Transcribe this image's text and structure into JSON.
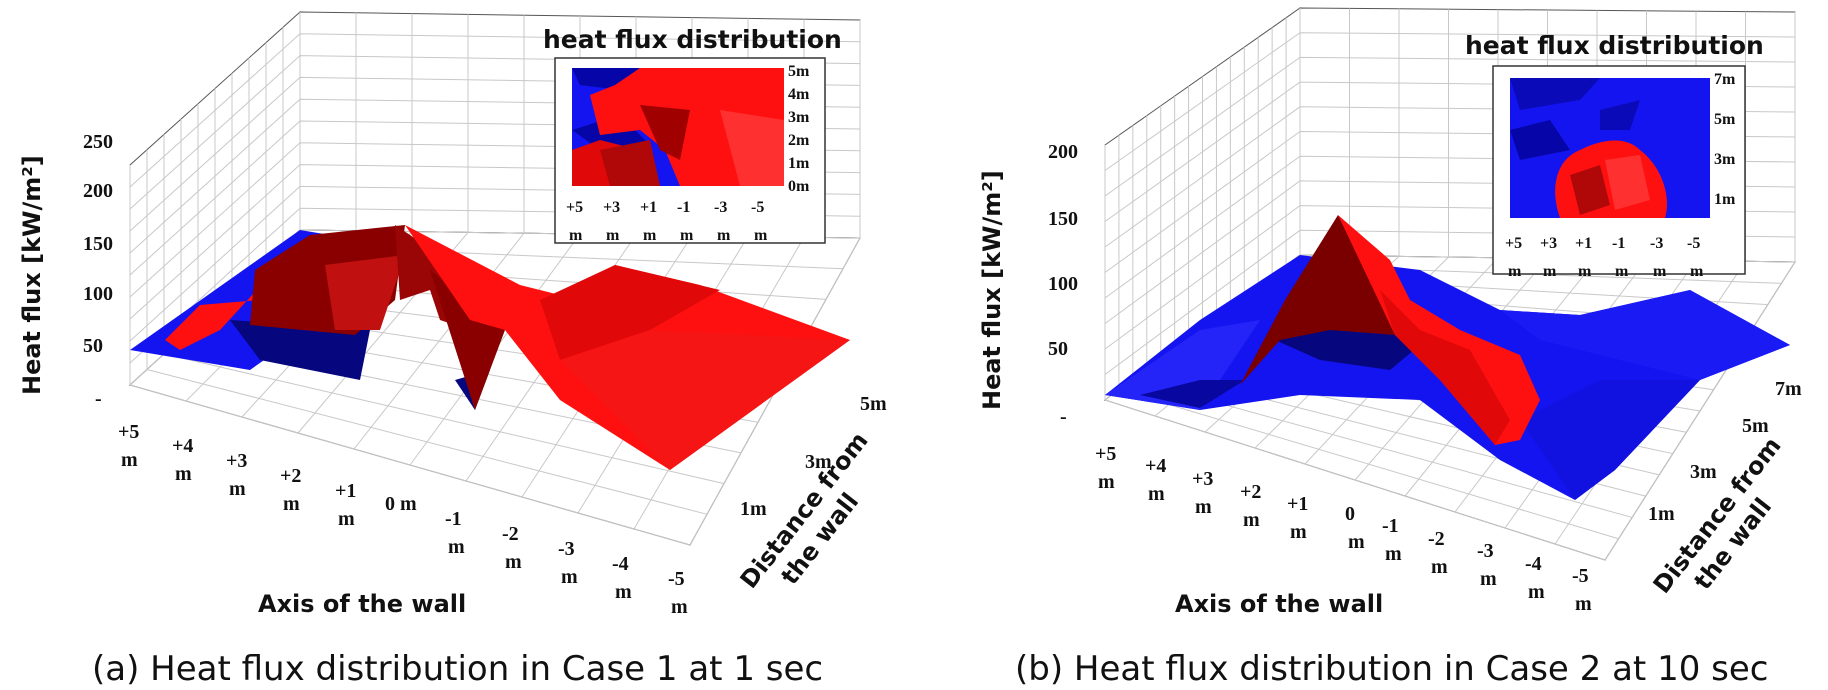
{
  "figure": {
    "captions": [
      "(a) Heat flux distribution in Case 1 at 1 sec",
      "(b) Heat flux distribution in Case 2 at 10 sec"
    ]
  },
  "colors": {
    "high_flux": "#ff1010",
    "low_flux": "#1414f0",
    "dark_high": "#7a0000",
    "dark_low": "#06067e"
  },
  "chart_data": [
    {
      "type": "surface3d",
      "zlabel": "Heat flux [kW/m²]",
      "xlabel": "Axis of the wall",
      "ylabel": "Distance from the wall",
      "z_ticks": [
        "250",
        "200",
        "150",
        "100",
        "50",
        "-"
      ],
      "x_ticks": [
        [
          "+5",
          "m"
        ],
        [
          "+4",
          "m"
        ],
        [
          "+3",
          "m"
        ],
        [
          "+2",
          "m"
        ],
        [
          "+1",
          "m"
        ],
        [
          "0 m",
          ""
        ],
        [
          "-1",
          "m"
        ],
        [
          "-2",
          "m"
        ],
        [
          "-3",
          "m"
        ],
        [
          "-4",
          "m"
        ],
        [
          "-5",
          "m"
        ]
      ],
      "y_ticks": [
        "1m",
        "3m",
        "5m"
      ],
      "zlim": [
        0,
        250
      ],
      "inset": {
        "title": "heat flux distribution",
        "y_ticks": [
          "5m",
          "4m",
          "3m",
          "2m",
          "1m",
          "0m"
        ],
        "x_ticks": [
          [
            "+5",
            "m"
          ],
          [
            "+3",
            "m"
          ],
          [
            "+1",
            "m"
          ],
          [
            "-1",
            "m"
          ],
          [
            "-3",
            "m"
          ],
          [
            "-5",
            "m"
          ]
        ]
      },
      "surface": {
        "x": [
          5,
          4,
          3,
          2,
          1,
          0,
          -1,
          -2,
          -3,
          -4,
          -5
        ],
        "distance": [
          0,
          1,
          2,
          3,
          4,
          5
        ],
        "heat_flux": [
          [
            45,
            40,
            48,
            120,
            50,
            55,
            5,
            30,
            60,
            50,
            40
          ],
          [
            48,
            60,
            60,
            140,
            100,
            60,
            10,
            50,
            90,
            70,
            45
          ],
          [
            50,
            70,
            75,
            150,
            160,
            120,
            60,
            70,
            110,
            80,
            50
          ],
          [
            55,
            80,
            100,
            170,
            200,
            150,
            120,
            100,
            130,
            100,
            60
          ],
          [
            60,
            90,
            110,
            140,
            150,
            140,
            130,
            110,
            150,
            130,
            70
          ],
          [
            70,
            95,
            100,
            95,
            100,
            105,
            105,
            100,
            120,
            115,
            80
          ]
        ]
      }
    },
    {
      "type": "surface3d",
      "zlabel": "Heat flux [kW/m²]",
      "xlabel": "Axis of the wall",
      "ylabel": "Distance from the wall",
      "z_ticks": [
        "200",
        "150",
        "100",
        "50",
        "-"
      ],
      "x_ticks": [
        [
          "+5",
          "m"
        ],
        [
          "+4",
          "m"
        ],
        [
          "+3",
          "m"
        ],
        [
          "+2",
          "m"
        ],
        [
          "+1",
          "m"
        ],
        [
          "0",
          "m"
        ],
        [
          "-1",
          "m"
        ],
        [
          "-2",
          "m"
        ],
        [
          "-3",
          "m"
        ],
        [
          "-4",
          "m"
        ],
        [
          "-5",
          "m"
        ]
      ],
      "y_ticks": [
        "1m",
        "3m",
        "5m",
        "7m"
      ],
      "zlim": [
        0,
        200
      ],
      "inset": {
        "title": "heat flux distribution",
        "y_ticks": [
          "7m",
          "5m",
          "3m",
          "1m"
        ],
        "x_ticks": [
          [
            "+5",
            "m"
          ],
          [
            "+3",
            "m"
          ],
          [
            "+1",
            "m"
          ],
          [
            "-1",
            "m"
          ],
          [
            "-3",
            "m"
          ],
          [
            "-5",
            "m"
          ]
        ]
      },
      "surface": {
        "x": [
          5,
          4,
          3,
          2,
          1,
          0,
          -1,
          -2,
          -3,
          -4,
          -5
        ],
        "distance": [
          0,
          1,
          2,
          3,
          4,
          5,
          6,
          7
        ],
        "heat_flux": [
          [
            15,
            10,
            20,
            60,
            90,
            80,
            60,
            30,
            10,
            5,
            10
          ],
          [
            20,
            25,
            40,
            100,
            140,
            110,
            80,
            40,
            15,
            20,
            25
          ],
          [
            25,
            40,
            60,
            120,
            160,
            130,
            90,
            50,
            30,
            35,
            40
          ],
          [
            30,
            50,
            80,
            130,
            180,
            140,
            100,
            60,
            50,
            55,
            50
          ],
          [
            35,
            60,
            85,
            120,
            150,
            120,
            95,
            70,
            70,
            70,
            60
          ],
          [
            40,
            65,
            90,
            110,
            115,
            100,
            90,
            85,
            90,
            90,
            70
          ],
          [
            45,
            70,
            85,
            90,
            90,
            90,
            90,
            90,
            95,
            90,
            75
          ],
          [
            50,
            70,
            80,
            85,
            85,
            85,
            85,
            85,
            90,
            85,
            80
          ]
        ]
      }
    }
  ]
}
